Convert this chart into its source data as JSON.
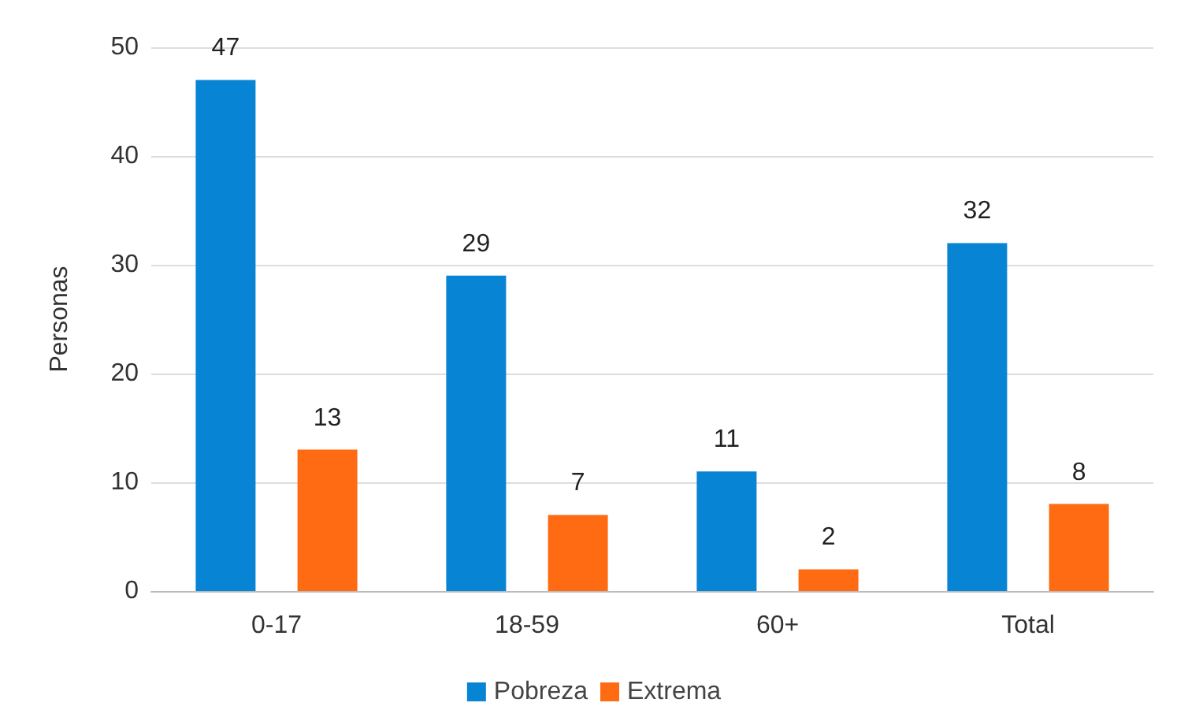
{
  "chart_data": {
    "type": "bar",
    "ylabel": "Personas",
    "categories": [
      "0-17",
      "18-59",
      "60+",
      "Total"
    ],
    "series": [
      {
        "name": "Pobreza",
        "color": "#0884d4",
        "values": [
          47,
          29,
          11,
          32
        ]
      },
      {
        "name": "Extrema",
        "color": "#fe6b12",
        "values": [
          13,
          7,
          2,
          8
        ]
      }
    ],
    "ylim": [
      0,
      50
    ],
    "yticks": [
      0,
      10,
      20,
      30,
      40,
      50
    ],
    "grid": "y",
    "legend": "bottom",
    "data_labels": true
  }
}
